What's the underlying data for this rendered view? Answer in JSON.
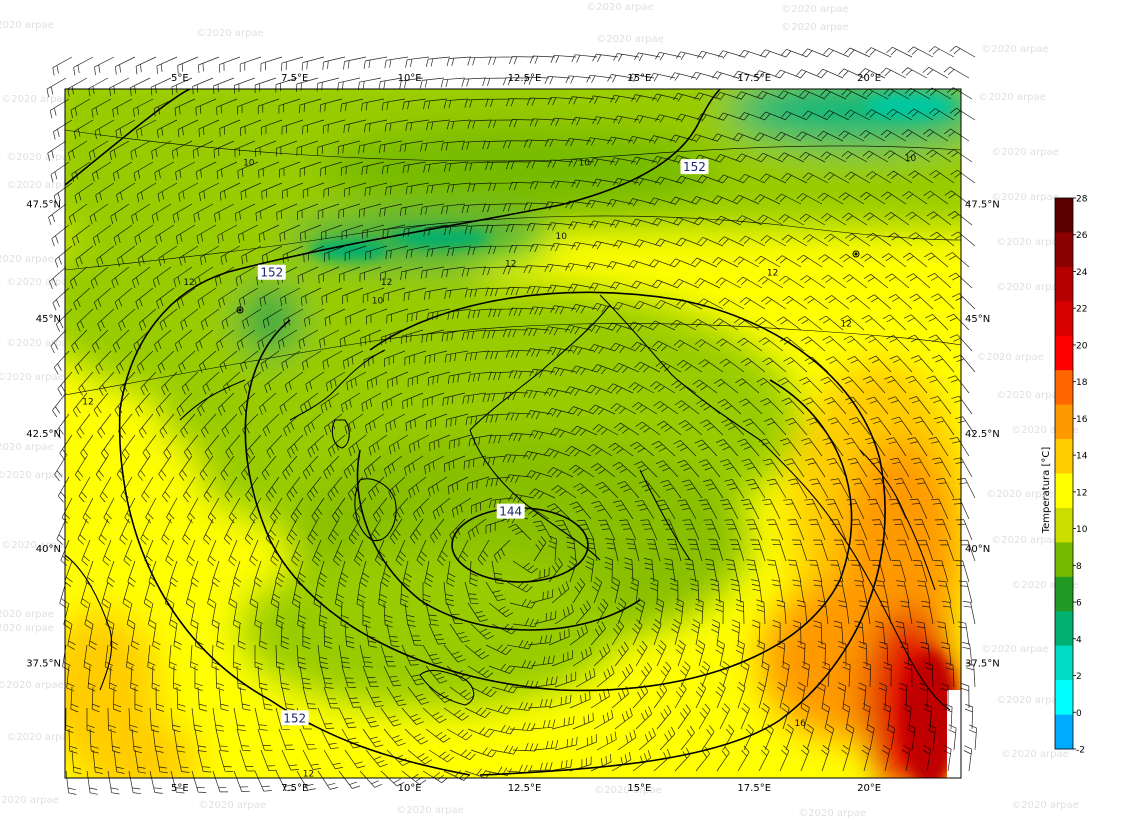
{
  "map": {
    "lon_range": [
      2.5,
      22.0
    ],
    "lat_range": [
      35.0,
      50.0
    ],
    "lon_ticks": [
      {
        "value": 5.0,
        "label": "5°E"
      },
      {
        "value": 7.5,
        "label": "7.5°E"
      },
      {
        "value": 10.0,
        "label": "10°E"
      },
      {
        "value": 12.5,
        "label": "12.5°E"
      },
      {
        "value": 15.0,
        "label": "15°E"
      },
      {
        "value": 17.5,
        "label": "17.5°E"
      },
      {
        "value": 20.0,
        "label": "20°E"
      }
    ],
    "lat_ticks": [
      {
        "value": 47.5,
        "label": "47.5°N"
      },
      {
        "value": 45.0,
        "label": "45°N"
      },
      {
        "value": 42.5,
        "label": "42.5°N"
      },
      {
        "value": 40.0,
        "label": "40°N"
      },
      {
        "value": 37.5,
        "label": "37.5°N"
      }
    ],
    "geopotential_labels": [
      {
        "text": "152",
        "lon": 16.2,
        "lat": 48.3
      },
      {
        "text": "152",
        "lon": 7.0,
        "lat": 46.0
      },
      {
        "text": "144",
        "lon": 12.2,
        "lat": 40.8
      },
      {
        "text": "152",
        "lon": 7.5,
        "lat": 36.3
      }
    ],
    "isotherm_labels": [
      {
        "text": "10",
        "lon": 6.5,
        "lat": 48.4
      },
      {
        "text": "10",
        "lon": 13.8,
        "lat": 48.4
      },
      {
        "text": "10",
        "lon": 20.9,
        "lat": 48.5
      },
      {
        "text": "10",
        "lon": 13.3,
        "lat": 46.8
      },
      {
        "text": "12",
        "lon": 12.2,
        "lat": 46.2
      },
      {
        "text": "12",
        "lon": 9.5,
        "lat": 45.8
      },
      {
        "text": "10",
        "lon": 9.3,
        "lat": 45.4
      },
      {
        "text": "12",
        "lon": 5.2,
        "lat": 45.8
      },
      {
        "text": "12",
        "lon": 17.9,
        "lat": 46.0
      },
      {
        "text": "12",
        "lon": 19.5,
        "lat": 44.9
      },
      {
        "text": "12",
        "lon": 3.0,
        "lat": 43.2
      },
      {
        "text": "12",
        "lon": 7.8,
        "lat": 35.1
      },
      {
        "text": "16",
        "lon": 18.5,
        "lat": 36.2
      }
    ]
  },
  "colorbar": {
    "label": "Temperatura [°C]",
    "ticks": [
      "28",
      "26",
      "24",
      "22",
      "20",
      "18",
      "16",
      "14",
      "12",
      "10",
      "8",
      "6",
      "4",
      "2",
      "0",
      "-2"
    ],
    "colors": [
      "#5a0000",
      "#8b0000",
      "#b40000",
      "#d60000",
      "#ff0000",
      "#ff6600",
      "#ff9900",
      "#ffcc00",
      "#ffff00",
      "#ccdd00",
      "#77bb00",
      "#229922",
      "#00b070",
      "#00dcc8",
      "#00ffff",
      "#00aaff"
    ]
  },
  "watermark": "©2020 arpae"
}
